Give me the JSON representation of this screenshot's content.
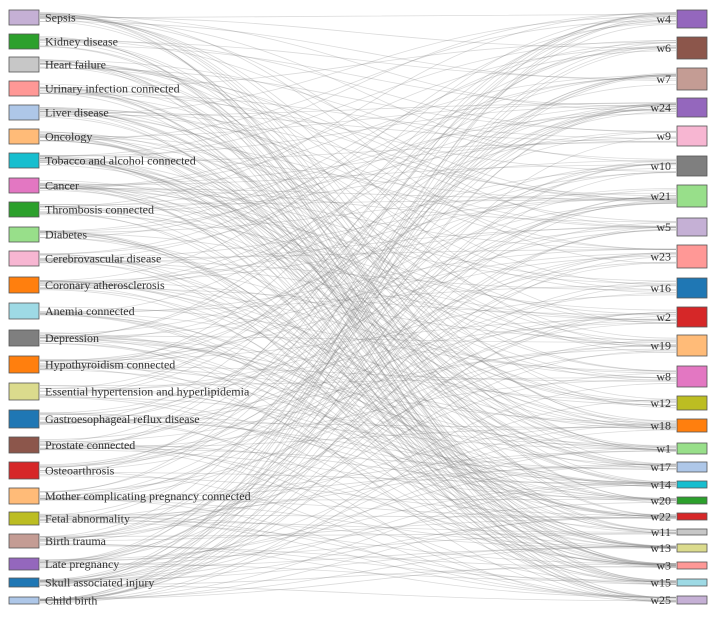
{
  "diagram": {
    "left_nodes": [
      {
        "label": "Sepsis",
        "color": "#c5b0d5"
      },
      {
        "label": "Kidney disease",
        "color": "#2ca02c"
      },
      {
        "label": "Heart failure",
        "color": "#c7c7c7"
      },
      {
        "label": "Urinary infection connected",
        "color": "#ff9896"
      },
      {
        "label": "Liver disease",
        "color": "#aec7e8"
      },
      {
        "label": "Oncology",
        "color": "#ffbb78"
      },
      {
        "label": "Tobacco and alcohol connected",
        "color": "#17becf"
      },
      {
        "label": "Cancer",
        "color": "#e377c2"
      },
      {
        "label": "Thrombosis connected",
        "color": "#2ca02c"
      },
      {
        "label": "Diabetes",
        "color": "#98df8a"
      },
      {
        "label": "Cerebrovascular disease",
        "color": "#f7b6d2"
      },
      {
        "label": "Coronary atherosclerosis",
        "color": "#ff7f0e"
      },
      {
        "label": "Anemia connected",
        "color": "#9edae5"
      },
      {
        "label": "Depression",
        "color": "#7f7f7f"
      },
      {
        "label": "Hypothyroidism connected",
        "color": "#ff7f0e"
      },
      {
        "label": "Essential hypertension and hyperlipidemia",
        "color": "#dbdb8d"
      },
      {
        "label": "Gastroesophageal reflux disease",
        "color": "#1f77b4"
      },
      {
        "label": "Prostate connected",
        "color": "#8c564b"
      },
      {
        "label": "Osteoarthrosis",
        "color": "#d62728"
      },
      {
        "label": "Mother complicating pregnancy connected",
        "color": "#ffbb78"
      },
      {
        "label": "Fetal abnormality",
        "color": "#bcbd22"
      },
      {
        "label": "Birth trauma",
        "color": "#c49c94"
      },
      {
        "label": "Late pregnancy",
        "color": "#9467bd"
      },
      {
        "label": "Skull associated injury",
        "color": "#1f77b4"
      },
      {
        "label": "Child birth",
        "color": "#aec7e8"
      }
    ],
    "right_nodes": [
      {
        "label": "w4",
        "color": "#9467bd"
      },
      {
        "label": "w6",
        "color": "#8c564b"
      },
      {
        "label": "w7",
        "color": "#c49c94"
      },
      {
        "label": "w24",
        "color": "#9467bd"
      },
      {
        "label": "w9",
        "color": "#f7b6d2"
      },
      {
        "label": "w10",
        "color": "#7f7f7f"
      },
      {
        "label": "w21",
        "color": "#98df8a"
      },
      {
        "label": "w5",
        "color": "#c5b0d5"
      },
      {
        "label": "w23",
        "color": "#ff9896"
      },
      {
        "label": "w16",
        "color": "#1f77b4"
      },
      {
        "label": "w2",
        "color": "#d62728"
      },
      {
        "label": "w19",
        "color": "#ffbb78"
      },
      {
        "label": "w8",
        "color": "#e377c2"
      },
      {
        "label": "w12",
        "color": "#bcbd22"
      },
      {
        "label": "w18",
        "color": "#ff7f0e"
      },
      {
        "label": "w1",
        "color": "#98df8a"
      },
      {
        "label": "w17",
        "color": "#aec7e8"
      },
      {
        "label": "w14",
        "color": "#17becf"
      },
      {
        "label": "w20",
        "color": "#2ca02c"
      },
      {
        "label": "w22",
        "color": "#d62728"
      },
      {
        "label": "w11",
        "color": "#c7c7c7"
      },
      {
        "label": "w13",
        "color": "#dbdb8d"
      },
      {
        "label": "w3",
        "color": "#ff9896"
      },
      {
        "label": "w15",
        "color": "#9edae5"
      },
      {
        "label": "w25",
        "color": "#c5b0d5"
      }
    ],
    "link_color": "#7f7f7f"
  }
}
